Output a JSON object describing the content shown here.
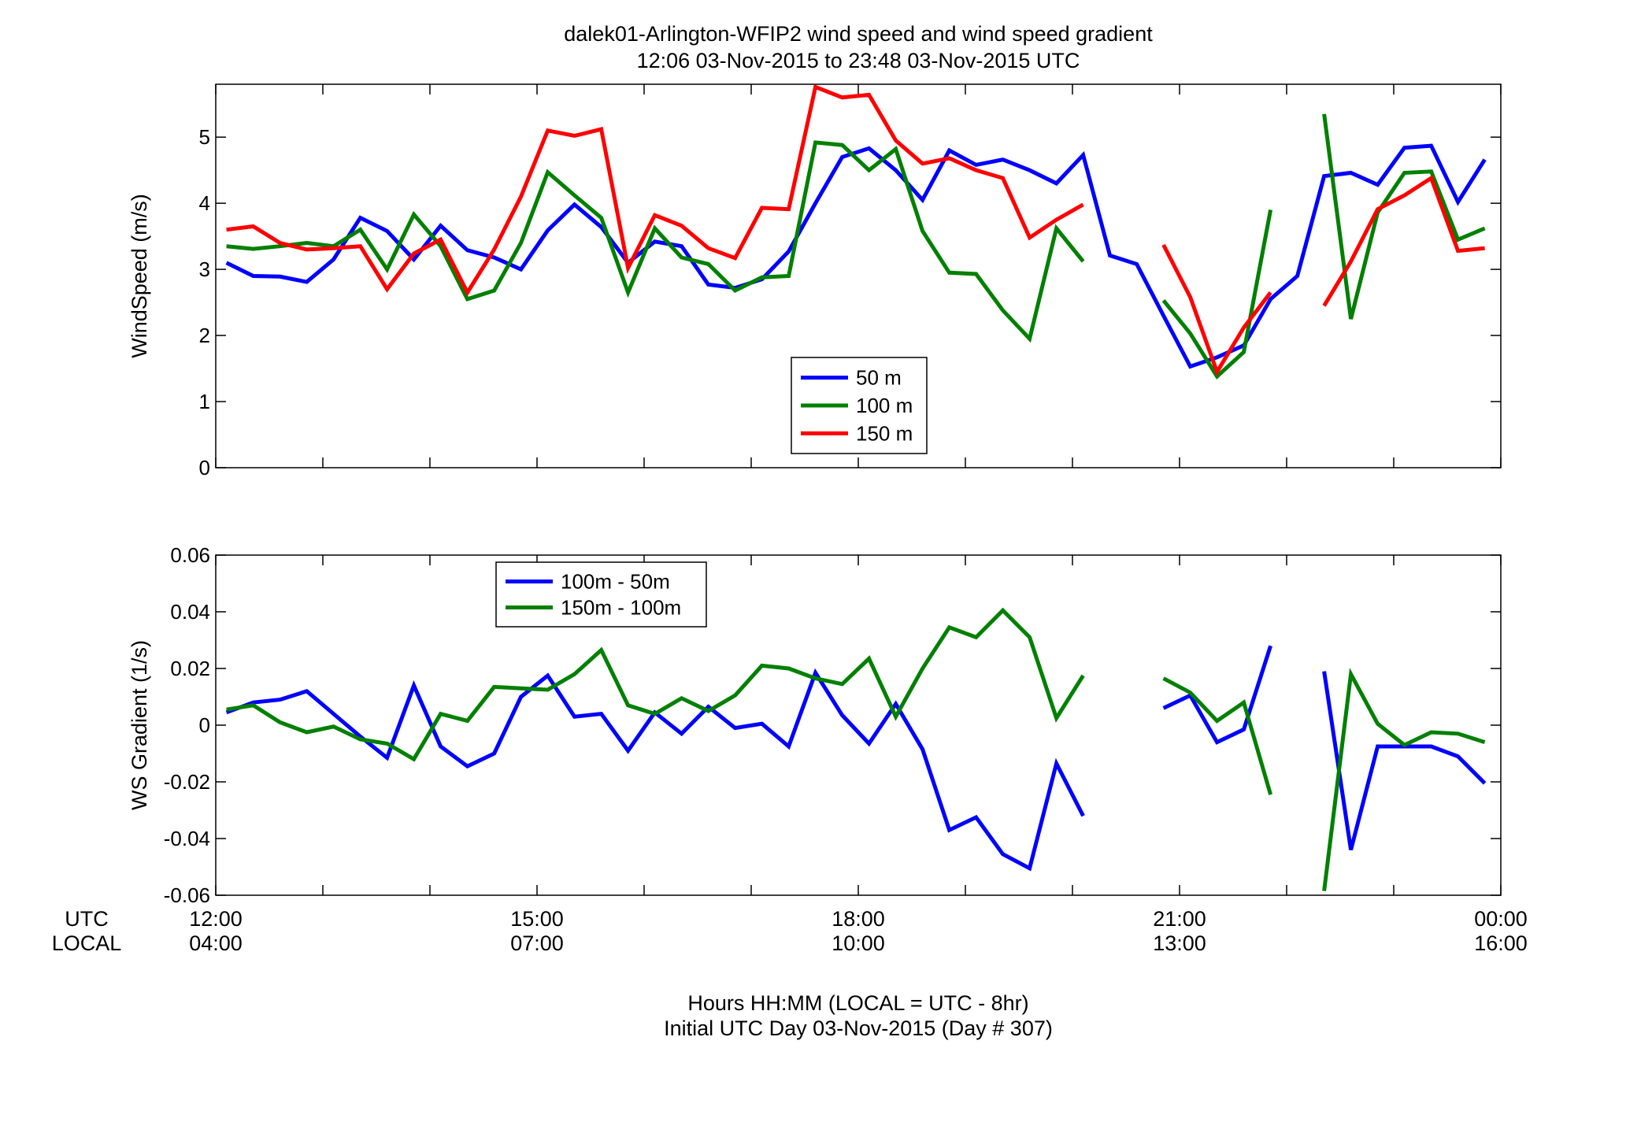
{
  "figure": {
    "title_line1": "dalek01-Arlington-WFIP2  wind speed and wind speed gradient",
    "title_line2": "12:06 03-Nov-2015 to 23:48 03-Nov-2015  UTC",
    "xlabel_line1": "Hours HH:MM  (LOCAL = UTC - 8hr)",
    "xlabel_line2": "Initial UTC Day 03-Nov-2015 (Day # 307)",
    "utc_label": "UTC",
    "local_label": "LOCAL",
    "utc_ticks": [
      "12:00",
      "15:00",
      "18:00",
      "21:00",
      "00:00"
    ],
    "local_ticks": [
      "04:00",
      "07:00",
      "10:00",
      "13:00",
      "16:00"
    ]
  },
  "chart_data": [
    {
      "type": "line",
      "ylabel": "WindSpeed (m/s)",
      "xlim": [
        12,
        24
      ],
      "ylim": [
        0,
        5.8
      ],
      "yticks": [
        0,
        1,
        2,
        3,
        4,
        5
      ],
      "ytick_labels": [
        "0",
        "1",
        "2",
        "3",
        "4",
        "5"
      ],
      "grid": false,
      "legend_position": "center",
      "x": [
        12.1,
        12.35,
        12.6,
        12.85,
        13.1,
        13.35,
        13.6,
        13.85,
        14.1,
        14.35,
        14.6,
        14.85,
        15.1,
        15.35,
        15.6,
        15.85,
        16.1,
        16.35,
        16.6,
        16.85,
        17.1,
        17.35,
        17.6,
        17.85,
        18.1,
        18.35,
        18.6,
        18.85,
        19.1,
        19.35,
        19.6,
        19.85,
        20.1,
        20.35,
        20.6,
        20.85,
        21.1,
        21.35,
        21.6,
        21.85,
        22.1,
        22.35,
        22.6,
        22.85,
        23.1,
        23.35,
        23.6,
        23.85
      ],
      "series": [
        {
          "name": "50 m",
          "color": "#0000ff",
          "values": [
            3.1,
            2.9,
            2.89,
            2.81,
            3.15,
            3.78,
            3.58,
            3.15,
            3.66,
            3.29,
            3.18,
            3.0,
            3.59,
            3.98,
            3.64,
            3.1,
            3.42,
            3.35,
            2.77,
            2.72,
            2.85,
            3.27,
            4.0,
            4.7,
            4.83,
            4.5,
            4.05,
            4.8,
            4.58,
            4.66,
            4.5,
            4.3,
            4.73,
            3.21,
            3.08,
            2.3,
            1.53,
            1.67,
            1.85,
            2.55,
            2.9,
            4.41,
            4.46,
            4.28,
            4.84,
            4.87,
            4.02,
            4.66
          ]
        },
        {
          "name": "100 m",
          "color": "#008000",
          "values": [
            3.35,
            3.31,
            3.35,
            3.4,
            3.35,
            3.6,
            3.0,
            3.83,
            3.35,
            2.55,
            2.68,
            3.4,
            4.47,
            4.12,
            3.78,
            2.65,
            3.62,
            3.18,
            3.08,
            2.68,
            2.88,
            2.9,
            4.92,
            4.88,
            4.5,
            4.82,
            3.58,
            2.95,
            2.93,
            2.38,
            1.95,
            3.62,
            3.12,
            null,
            null,
            2.53,
            2.03,
            1.38,
            1.75,
            3.9,
            null,
            5.35,
            2.25,
            3.86,
            4.46,
            4.48,
            3.45,
            3.62
          ]
        },
        {
          "name": "150 m",
          "color": "#ff0000",
          "values": [
            3.6,
            3.65,
            3.4,
            3.3,
            3.32,
            3.35,
            2.7,
            3.24,
            3.45,
            2.65,
            3.3,
            4.1,
            5.1,
            5.02,
            5.12,
            3.02,
            3.82,
            3.66,
            3.32,
            3.17,
            3.93,
            3.91,
            5.76,
            5.6,
            5.64,
            4.95,
            4.6,
            4.68,
            4.5,
            4.38,
            3.48,
            3.75,
            3.98,
            null,
            null,
            3.37,
            2.58,
            1.45,
            2.12,
            2.65,
            null,
            2.45,
            3.12,
            3.91,
            4.12,
            4.38,
            3.28,
            3.32
          ]
        }
      ]
    },
    {
      "type": "line",
      "ylabel": "WS Gradient (1/s)",
      "xlim": [
        12,
        24
      ],
      "ylim": [
        -0.06,
        0.06
      ],
      "yticks": [
        -0.06,
        -0.04,
        -0.02,
        0,
        0.02,
        0.04,
        0.06
      ],
      "ytick_labels": [
        "-0.06",
        "-0.04",
        "-0.02",
        "0",
        "0.02",
        "0.04",
        "0.06"
      ],
      "grid": false,
      "legend_position": "top-left",
      "x": [
        12.1,
        12.35,
        12.6,
        12.85,
        13.1,
        13.35,
        13.6,
        13.85,
        14.1,
        14.35,
        14.6,
        14.85,
        15.1,
        15.35,
        15.6,
        15.85,
        16.1,
        16.35,
        16.6,
        16.85,
        17.1,
        17.35,
        17.6,
        17.85,
        18.1,
        18.35,
        18.6,
        18.85,
        19.1,
        19.35,
        19.6,
        19.85,
        20.1,
        20.35,
        20.6,
        20.85,
        21.1,
        21.35,
        21.6,
        21.85,
        22.1,
        22.35,
        22.6,
        22.85,
        23.1,
        23.35,
        23.6,
        23.85
      ],
      "series": [
        {
          "name": "100m - 50m",
          "color": "#0000ff",
          "values": [
            0.0045,
            0.008,
            0.009,
            0.012,
            0.004,
            -0.004,
            -0.0115,
            0.014,
            -0.0075,
            -0.0145,
            -0.01,
            0.01,
            0.0175,
            0.003,
            0.004,
            -0.009,
            0.0045,
            -0.003,
            0.0065,
            -0.001,
            0.0005,
            -0.0075,
            0.0185,
            0.0035,
            -0.0065,
            0.0075,
            -0.0085,
            -0.037,
            -0.0325,
            -0.0455,
            -0.0505,
            -0.0135,
            -0.032,
            null,
            null,
            0.006,
            0.0105,
            -0.006,
            -0.0015,
            0.028,
            null,
            0.019,
            -0.044,
            -0.0075,
            -0.0075,
            -0.0075,
            -0.011,
            -0.0205
          ]
        },
        {
          "name": "150m - 100m",
          "color": "#008000",
          "values": [
            0.0055,
            0.007,
            0.001,
            -0.0025,
            -0.0005,
            -0.005,
            -0.0065,
            -0.012,
            0.004,
            0.0015,
            0.0135,
            0.013,
            0.0125,
            0.018,
            0.0265,
            0.007,
            0.004,
            0.0095,
            0.005,
            0.0105,
            0.021,
            0.02,
            0.0165,
            0.0145,
            0.0235,
            0.003,
            0.02,
            0.0345,
            0.031,
            0.0405,
            0.031,
            0.0025,
            0.0175,
            null,
            null,
            0.0165,
            0.0115,
            0.0015,
            0.008,
            -0.0245,
            null,
            -0.0585,
            0.018,
            0.0005,
            -0.007,
            -0.0025,
            -0.003,
            -0.006
          ]
        }
      ]
    }
  ]
}
